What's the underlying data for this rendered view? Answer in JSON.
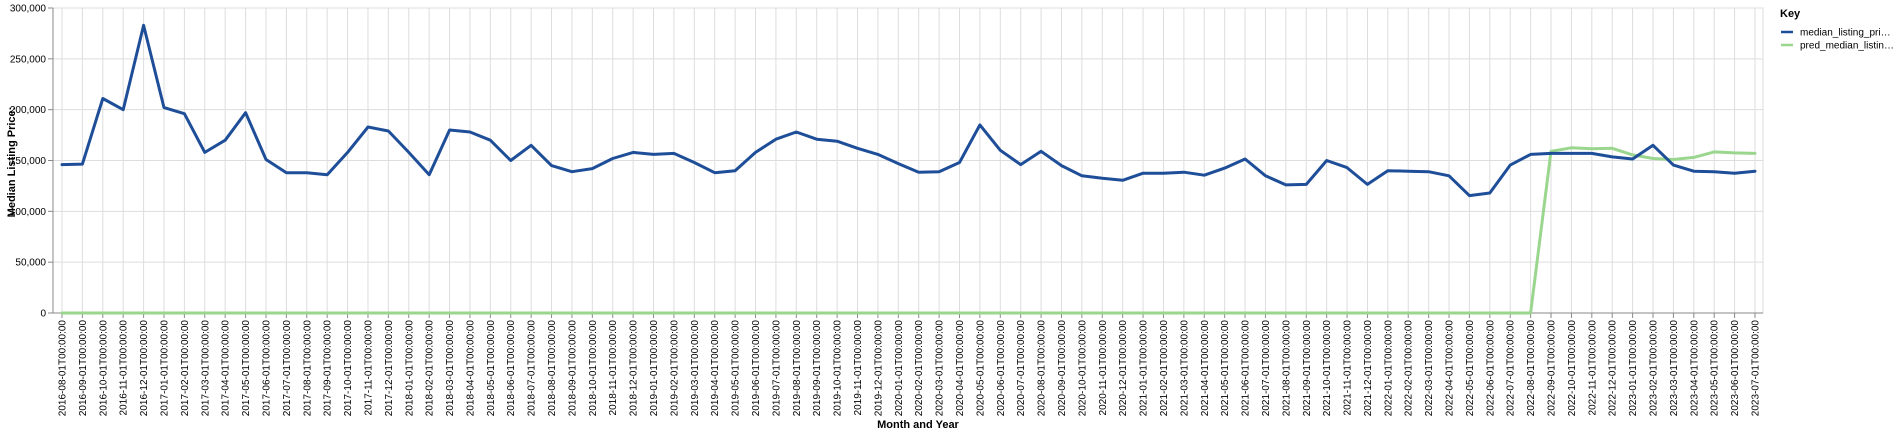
{
  "chart_data": {
    "type": "line",
    "xlabel": "Month and Year",
    "ylabel": "Median Listing Price:",
    "ylim": [
      0,
      300000
    ],
    "y_ticks": [
      "0",
      "50,000",
      "100,000",
      "150,000",
      "200,000",
      "250,000",
      "300,000"
    ],
    "grid": true,
    "legend": {
      "title": "Key",
      "placement": "top-right"
    },
    "x": [
      "2016-08-01T00:00:00",
      "2016-09-01T00:00:00",
      "2016-10-01T00:00:00",
      "2016-11-01T00:00:00",
      "2016-12-01T00:00:00",
      "2017-01-01T00:00:00",
      "2017-02-01T00:00:00",
      "2017-03-01T00:00:00",
      "2017-04-01T00:00:00",
      "2017-05-01T00:00:00",
      "2017-06-01T00:00:00",
      "2017-07-01T00:00:00",
      "2017-08-01T00:00:00",
      "2017-09-01T00:00:00",
      "2017-10-01T00:00:00",
      "2017-11-01T00:00:00",
      "2017-12-01T00:00:00",
      "2018-01-01T00:00:00",
      "2018-02-01T00:00:00",
      "2018-03-01T00:00:00",
      "2018-04-01T00:00:00",
      "2018-05-01T00:00:00",
      "2018-06-01T00:00:00",
      "2018-07-01T00:00:00",
      "2018-08-01T00:00:00",
      "2018-09-01T00:00:00",
      "2018-10-01T00:00:00",
      "2018-11-01T00:00:00",
      "2018-12-01T00:00:00",
      "2019-01-01T00:00:00",
      "2019-02-01T00:00:00",
      "2019-03-01T00:00:00",
      "2019-04-01T00:00:00",
      "2019-05-01T00:00:00",
      "2019-06-01T00:00:00",
      "2019-07-01T00:00:00",
      "2019-08-01T00:00:00",
      "2019-09-01T00:00:00",
      "2019-10-01T00:00:00",
      "2019-11-01T00:00:00",
      "2019-12-01T00:00:00",
      "2020-01-01T00:00:00",
      "2020-02-01T00:00:00",
      "2020-03-01T00:00:00",
      "2020-04-01T00:00:00",
      "2020-05-01T00:00:00",
      "2020-06-01T00:00:00",
      "2020-07-01T00:00:00",
      "2020-08-01T00:00:00",
      "2020-09-01T00:00:00",
      "2020-10-01T00:00:00",
      "2020-11-01T00:00:00",
      "2020-12-01T00:00:00",
      "2021-01-01T00:00:00",
      "2021-02-01T00:00:00",
      "2021-03-01T00:00:00",
      "2021-04-01T00:00:00",
      "2021-05-01T00:00:00",
      "2021-06-01T00:00:00",
      "2021-07-01T00:00:00",
      "2021-08-01T00:00:00",
      "2021-09-01T00:00:00",
      "2021-10-01T00:00:00",
      "2021-11-01T00:00:00",
      "2021-12-01T00:00:00",
      "2022-01-01T00:00:00",
      "2022-02-01T00:00:00",
      "2022-03-01T00:00:00",
      "2022-04-01T00:00:00",
      "2022-05-01T00:00:00",
      "2022-06-01T00:00:00",
      "2022-07-01T00:00:00",
      "2022-08-01T00:00:00",
      "2022-09-01T00:00:00",
      "2022-10-01T00:00:00",
      "2022-11-01T00:00:00",
      "2022-12-01T00:00:00",
      "2023-01-01T00:00:00",
      "2023-02-01T00:00:00",
      "2023-03-01T00:00:00",
      "2023-04-01T00:00:00",
      "2023-05-01T00:00:00",
      "2023-06-01T00:00:00",
      "2023-07-01T00:00:00"
    ],
    "series": [
      {
        "name": "median_listing_pri…",
        "color": "#1f4e99",
        "values": [
          146000,
          146500,
          211000,
          200000,
          283000,
          202000,
          196000,
          158000,
          170000,
          197000,
          151000,
          138000,
          138000,
          136000,
          158000,
          183000,
          179000,
          158000,
          136000,
          180000,
          178000,
          170000,
          150000,
          165000,
          145000,
          139000,
          142000,
          152000,
          158000,
          156000,
          157000,
          148000,
          138000,
          140000,
          158000,
          171000,
          178000,
          171000,
          169000,
          162000,
          156000,
          147000,
          138500,
          139000,
          148000,
          185000,
          160000,
          146000,
          159000,
          145000,
          135000,
          132500,
          130500,
          137500,
          137500,
          138500,
          135500,
          142500,
          151500,
          135000,
          126000,
          126500,
          150000,
          143000,
          126500,
          140000,
          139500,
          139000,
          135000,
          115500,
          118000,
          145500,
          156000,
          157000,
          157000,
          157000,
          153500,
          151500,
          165000,
          145500,
          139500,
          139000,
          137500,
          139500
        ]
      },
      {
        "name": "pred_median_listin…",
        "color": "#9ad68e",
        "values": [
          0,
          0,
          0,
          0,
          0,
          0,
          0,
          0,
          0,
          0,
          0,
          0,
          0,
          0,
          0,
          0,
          0,
          0,
          0,
          0,
          0,
          0,
          0,
          0,
          0,
          0,
          0,
          0,
          0,
          0,
          0,
          0,
          0,
          0,
          0,
          0,
          0,
          0,
          0,
          0,
          0,
          0,
          0,
          0,
          0,
          0,
          0,
          0,
          0,
          0,
          0,
          0,
          0,
          0,
          0,
          0,
          0,
          0,
          0,
          0,
          0,
          0,
          0,
          0,
          0,
          0,
          0,
          0,
          0,
          0,
          0,
          0,
          0,
          159000,
          162500,
          161500,
          162000,
          155500,
          152000,
          151000,
          153000,
          158500,
          157500,
          157000
        ]
      }
    ]
  }
}
